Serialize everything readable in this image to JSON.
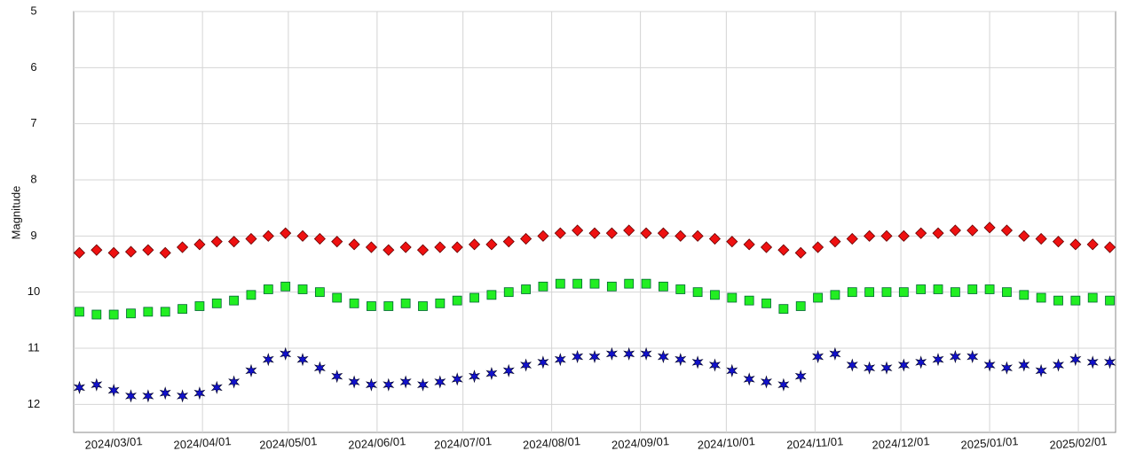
{
  "chart_data": {
    "type": "scatter",
    "y_label": "Magnitude",
    "y_inverted": true,
    "ylim": [
      5,
      12.5
    ],
    "yticks": [
      5,
      6,
      7,
      8,
      9,
      10,
      11,
      12
    ],
    "xlim": [
      "2024/02/16",
      "2025/02/14"
    ],
    "xticks": [
      "2024/03/01",
      "2024/04/01",
      "2024/05/01",
      "2024/06/01",
      "2024/07/01",
      "2024/08/01",
      "2024/09/01",
      "2024/10/01",
      "2024/11/01",
      "2024/12/01",
      "2025/01/01",
      "2025/02/01"
    ],
    "grid": true,
    "x": [
      "2024/02/18",
      "2024/02/24",
      "2024/03/01",
      "2024/03/07",
      "2024/03/13",
      "2024/03/19",
      "2024/03/25",
      "2024/03/31",
      "2024/04/06",
      "2024/04/12",
      "2024/04/18",
      "2024/04/24",
      "2024/04/30",
      "2024/05/06",
      "2024/05/12",
      "2024/05/18",
      "2024/05/24",
      "2024/05/30",
      "2024/06/05",
      "2024/06/11",
      "2024/06/17",
      "2024/06/23",
      "2024/06/29",
      "2024/07/05",
      "2024/07/11",
      "2024/07/17",
      "2024/07/23",
      "2024/07/29",
      "2024/08/04",
      "2024/08/10",
      "2024/08/16",
      "2024/08/22",
      "2024/08/28",
      "2024/09/03",
      "2024/09/09",
      "2024/09/15",
      "2024/09/21",
      "2024/09/27",
      "2024/10/03",
      "2024/10/09",
      "2024/10/15",
      "2024/10/21",
      "2024/10/27",
      "2024/11/02",
      "2024/11/08",
      "2024/11/14",
      "2024/11/20",
      "2024/11/26",
      "2024/12/02",
      "2024/12/08",
      "2024/12/14",
      "2024/12/20",
      "2024/12/26",
      "2025/01/01",
      "2025/01/07",
      "2025/01/13",
      "2025/01/19",
      "2025/01/25",
      "2025/01/31",
      "2025/02/06",
      "2025/02/12"
    ],
    "series": [
      {
        "color": "#ee1111",
        "marker": "diamond",
        "values": [
          9.3,
          9.25,
          9.3,
          9.28,
          9.25,
          9.3,
          9.2,
          9.15,
          9.1,
          9.1,
          9.05,
          9.0,
          8.95,
          9.0,
          9.05,
          9.1,
          9.15,
          9.2,
          9.25,
          9.2,
          9.25,
          9.2,
          9.2,
          9.15,
          9.15,
          9.1,
          9.05,
          9.0,
          8.95,
          8.9,
          8.95,
          8.95,
          8.9,
          8.95,
          8.95,
          9.0,
          9.0,
          9.05,
          9.1,
          9.15,
          9.2,
          9.25,
          9.3,
          9.2,
          9.1,
          9.05,
          9.0,
          9.0,
          9.0,
          8.95,
          8.95,
          8.9,
          8.9,
          8.85,
          8.9,
          9.0,
          9.05,
          9.1,
          9.15,
          9.15,
          9.2
        ]
      },
      {
        "color": "#22ee22",
        "marker": "square",
        "values": [
          10.35,
          10.4,
          10.4,
          10.38,
          10.35,
          10.35,
          10.3,
          10.25,
          10.2,
          10.15,
          10.05,
          9.95,
          9.9,
          9.95,
          10.0,
          10.1,
          10.2,
          10.25,
          10.25,
          10.2,
          10.25,
          10.2,
          10.15,
          10.1,
          10.05,
          10.0,
          9.95,
          9.9,
          9.85,
          9.85,
          9.85,
          9.9,
          9.85,
          9.85,
          9.9,
          9.95,
          10.0,
          10.05,
          10.1,
          10.15,
          10.2,
          10.3,
          10.25,
          10.1,
          10.05,
          10.0,
          10.0,
          10.0,
          10.0,
          9.95,
          9.95,
          10.0,
          9.95,
          9.95,
          10.0,
          10.05,
          10.1,
          10.15,
          10.15,
          10.1,
          10.15
        ]
      },
      {
        "color": "#1111cc",
        "marker": "star",
        "values": [
          11.7,
          11.65,
          11.75,
          11.85,
          11.85,
          11.8,
          11.85,
          11.8,
          11.7,
          11.6,
          11.4,
          11.2,
          11.1,
          11.2,
          11.35,
          11.5,
          11.6,
          11.65,
          11.65,
          11.6,
          11.65,
          11.6,
          11.55,
          11.5,
          11.45,
          11.4,
          11.3,
          11.25,
          11.2,
          11.15,
          11.15,
          11.1,
          11.1,
          11.1,
          11.15,
          11.2,
          11.25,
          11.3,
          11.4,
          11.55,
          11.6,
          11.65,
          11.5,
          11.15,
          11.1,
          11.3,
          11.35,
          11.35,
          11.3,
          11.25,
          11.2,
          11.15,
          11.15,
          11.3,
          11.35,
          11.3,
          11.4,
          11.3,
          11.2,
          11.25,
          11.25
        ]
      }
    ]
  }
}
